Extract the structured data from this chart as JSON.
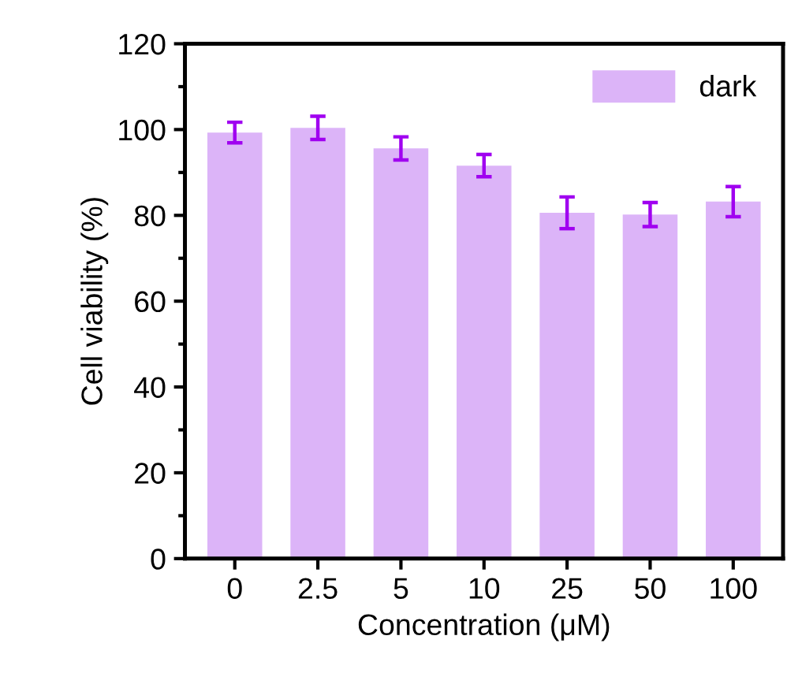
{
  "chart_data": {
    "type": "bar",
    "xlabel": "Concentration (μM)",
    "ylabel": "Cell viability (%)",
    "categories": [
      "0",
      "2.5",
      "5",
      "10",
      "25",
      "50",
      "100"
    ],
    "series": [
      {
        "name": "dark",
        "color": "#dcb4f8",
        "values": [
          99.3,
          100.4,
          95.6,
          91.6,
          80.6,
          80.2,
          83.2
        ],
        "errors": [
          2.4,
          2.7,
          2.7,
          2.6,
          3.7,
          2.8,
          3.5
        ]
      }
    ],
    "ylim": [
      0,
      120
    ],
    "yticks": [
      0,
      20,
      40,
      60,
      80,
      100,
      120
    ],
    "legend": "top right",
    "grid": false
  }
}
